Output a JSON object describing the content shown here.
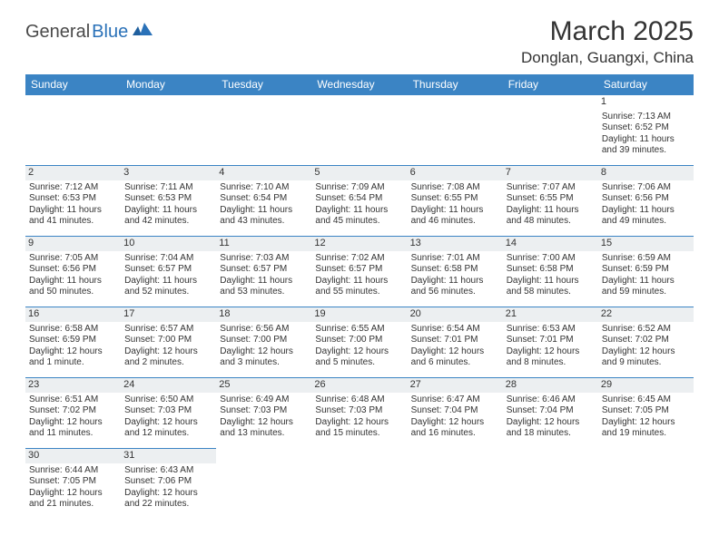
{
  "logo": {
    "dark": "General",
    "blue": "Blue"
  },
  "header": {
    "month_title": "March 2025",
    "location": "Donglan, Guangxi, China"
  },
  "colors": {
    "header_bg": "#3b84c4",
    "header_text": "#ffffff",
    "cell_border": "#3b84c4",
    "daynum_bg": "#eceff1",
    "logo_blue": "#2a71b8"
  },
  "day_headers": [
    "Sunday",
    "Monday",
    "Tuesday",
    "Wednesday",
    "Thursday",
    "Friday",
    "Saturday"
  ],
  "weeks": [
    [
      null,
      null,
      null,
      null,
      null,
      null,
      {
        "n": "1",
        "sunrise": "Sunrise: 7:13 AM",
        "sunset": "Sunset: 6:52 PM",
        "d1": "Daylight: 11 hours",
        "d2": "and 39 minutes."
      }
    ],
    [
      {
        "n": "2",
        "sunrise": "Sunrise: 7:12 AM",
        "sunset": "Sunset: 6:53 PM",
        "d1": "Daylight: 11 hours",
        "d2": "and 41 minutes."
      },
      {
        "n": "3",
        "sunrise": "Sunrise: 7:11 AM",
        "sunset": "Sunset: 6:53 PM",
        "d1": "Daylight: 11 hours",
        "d2": "and 42 minutes."
      },
      {
        "n": "4",
        "sunrise": "Sunrise: 7:10 AM",
        "sunset": "Sunset: 6:54 PM",
        "d1": "Daylight: 11 hours",
        "d2": "and 43 minutes."
      },
      {
        "n": "5",
        "sunrise": "Sunrise: 7:09 AM",
        "sunset": "Sunset: 6:54 PM",
        "d1": "Daylight: 11 hours",
        "d2": "and 45 minutes."
      },
      {
        "n": "6",
        "sunrise": "Sunrise: 7:08 AM",
        "sunset": "Sunset: 6:55 PM",
        "d1": "Daylight: 11 hours",
        "d2": "and 46 minutes."
      },
      {
        "n": "7",
        "sunrise": "Sunrise: 7:07 AM",
        "sunset": "Sunset: 6:55 PM",
        "d1": "Daylight: 11 hours",
        "d2": "and 48 minutes."
      },
      {
        "n": "8",
        "sunrise": "Sunrise: 7:06 AM",
        "sunset": "Sunset: 6:56 PM",
        "d1": "Daylight: 11 hours",
        "d2": "and 49 minutes."
      }
    ],
    [
      {
        "n": "9",
        "sunrise": "Sunrise: 7:05 AM",
        "sunset": "Sunset: 6:56 PM",
        "d1": "Daylight: 11 hours",
        "d2": "and 50 minutes."
      },
      {
        "n": "10",
        "sunrise": "Sunrise: 7:04 AM",
        "sunset": "Sunset: 6:57 PM",
        "d1": "Daylight: 11 hours",
        "d2": "and 52 minutes."
      },
      {
        "n": "11",
        "sunrise": "Sunrise: 7:03 AM",
        "sunset": "Sunset: 6:57 PM",
        "d1": "Daylight: 11 hours",
        "d2": "and 53 minutes."
      },
      {
        "n": "12",
        "sunrise": "Sunrise: 7:02 AM",
        "sunset": "Sunset: 6:57 PM",
        "d1": "Daylight: 11 hours",
        "d2": "and 55 minutes."
      },
      {
        "n": "13",
        "sunrise": "Sunrise: 7:01 AM",
        "sunset": "Sunset: 6:58 PM",
        "d1": "Daylight: 11 hours",
        "d2": "and 56 minutes."
      },
      {
        "n": "14",
        "sunrise": "Sunrise: 7:00 AM",
        "sunset": "Sunset: 6:58 PM",
        "d1": "Daylight: 11 hours",
        "d2": "and 58 minutes."
      },
      {
        "n": "15",
        "sunrise": "Sunrise: 6:59 AM",
        "sunset": "Sunset: 6:59 PM",
        "d1": "Daylight: 11 hours",
        "d2": "and 59 minutes."
      }
    ],
    [
      {
        "n": "16",
        "sunrise": "Sunrise: 6:58 AM",
        "sunset": "Sunset: 6:59 PM",
        "d1": "Daylight: 12 hours",
        "d2": "and 1 minute."
      },
      {
        "n": "17",
        "sunrise": "Sunrise: 6:57 AM",
        "sunset": "Sunset: 7:00 PM",
        "d1": "Daylight: 12 hours",
        "d2": "and 2 minutes."
      },
      {
        "n": "18",
        "sunrise": "Sunrise: 6:56 AM",
        "sunset": "Sunset: 7:00 PM",
        "d1": "Daylight: 12 hours",
        "d2": "and 3 minutes."
      },
      {
        "n": "19",
        "sunrise": "Sunrise: 6:55 AM",
        "sunset": "Sunset: 7:00 PM",
        "d1": "Daylight: 12 hours",
        "d2": "and 5 minutes."
      },
      {
        "n": "20",
        "sunrise": "Sunrise: 6:54 AM",
        "sunset": "Sunset: 7:01 PM",
        "d1": "Daylight: 12 hours",
        "d2": "and 6 minutes."
      },
      {
        "n": "21",
        "sunrise": "Sunrise: 6:53 AM",
        "sunset": "Sunset: 7:01 PM",
        "d1": "Daylight: 12 hours",
        "d2": "and 8 minutes."
      },
      {
        "n": "22",
        "sunrise": "Sunrise: 6:52 AM",
        "sunset": "Sunset: 7:02 PM",
        "d1": "Daylight: 12 hours",
        "d2": "and 9 minutes."
      }
    ],
    [
      {
        "n": "23",
        "sunrise": "Sunrise: 6:51 AM",
        "sunset": "Sunset: 7:02 PM",
        "d1": "Daylight: 12 hours",
        "d2": "and 11 minutes."
      },
      {
        "n": "24",
        "sunrise": "Sunrise: 6:50 AM",
        "sunset": "Sunset: 7:03 PM",
        "d1": "Daylight: 12 hours",
        "d2": "and 12 minutes."
      },
      {
        "n": "25",
        "sunrise": "Sunrise: 6:49 AM",
        "sunset": "Sunset: 7:03 PM",
        "d1": "Daylight: 12 hours",
        "d2": "and 13 minutes."
      },
      {
        "n": "26",
        "sunrise": "Sunrise: 6:48 AM",
        "sunset": "Sunset: 7:03 PM",
        "d1": "Daylight: 12 hours",
        "d2": "and 15 minutes."
      },
      {
        "n": "27",
        "sunrise": "Sunrise: 6:47 AM",
        "sunset": "Sunset: 7:04 PM",
        "d1": "Daylight: 12 hours",
        "d2": "and 16 minutes."
      },
      {
        "n": "28",
        "sunrise": "Sunrise: 6:46 AM",
        "sunset": "Sunset: 7:04 PM",
        "d1": "Daylight: 12 hours",
        "d2": "and 18 minutes."
      },
      {
        "n": "29",
        "sunrise": "Sunrise: 6:45 AM",
        "sunset": "Sunset: 7:05 PM",
        "d1": "Daylight: 12 hours",
        "d2": "and 19 minutes."
      }
    ],
    [
      {
        "n": "30",
        "sunrise": "Sunrise: 6:44 AM",
        "sunset": "Sunset: 7:05 PM",
        "d1": "Daylight: 12 hours",
        "d2": "and 21 minutes."
      },
      {
        "n": "31",
        "sunrise": "Sunrise: 6:43 AM",
        "sunset": "Sunset: 7:06 PM",
        "d1": "Daylight: 12 hours",
        "d2": "and 22 minutes."
      },
      null,
      null,
      null,
      null,
      null
    ]
  ]
}
